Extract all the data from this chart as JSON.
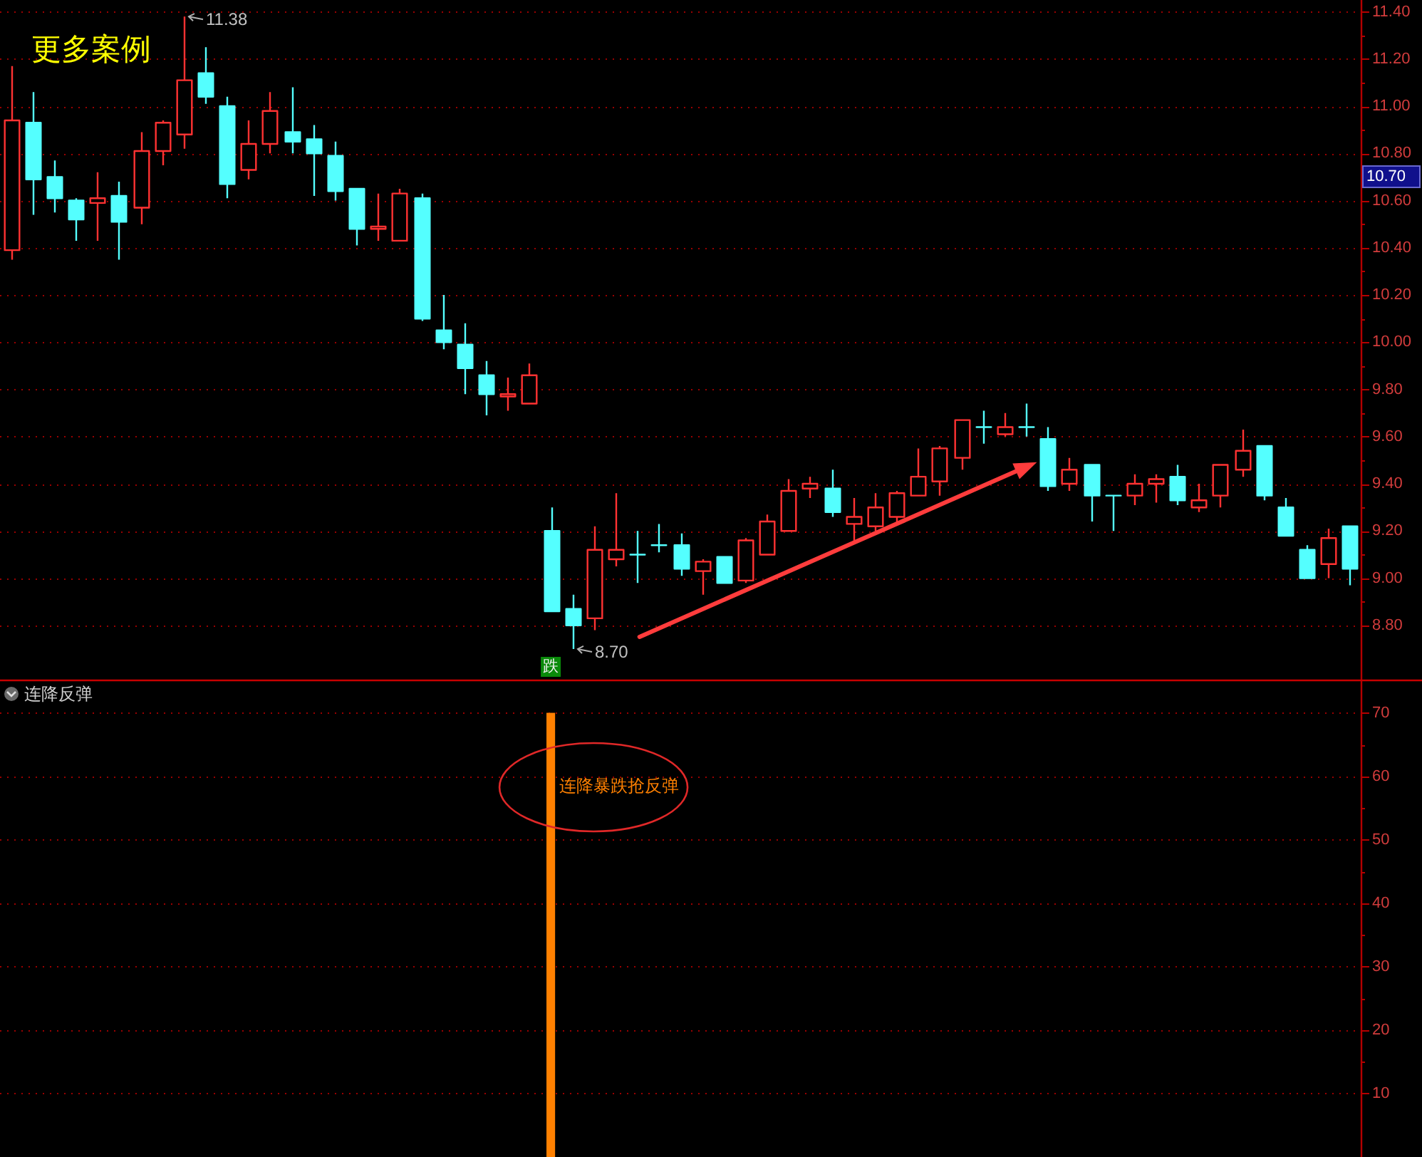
{
  "chart_data": [
    {
      "type": "candlestick",
      "categories": [
        null,
        null,
        null,
        null,
        null,
        null,
        null,
        null,
        null,
        null,
        null,
        null,
        null,
        null,
        null,
        null,
        null,
        null,
        null,
        null,
        null,
        null,
        null,
        null,
        null,
        null,
        null,
        null,
        null,
        null,
        null,
        null,
        null,
        null,
        null,
        null,
        null,
        null,
        null,
        null,
        null,
        null,
        null,
        null,
        null,
        null,
        null,
        null,
        null,
        null,
        null,
        null,
        null,
        null,
        null,
        null,
        null,
        null,
        null,
        null,
        null,
        null,
        null
      ],
      "ohlc": [
        [
          10.39,
          11.17,
          10.35,
          10.94
        ],
        [
          10.93,
          11.06,
          10.54,
          10.69
        ],
        [
          10.7,
          10.77,
          10.55,
          10.61
        ],
        [
          10.6,
          10.61,
          10.43,
          10.52
        ],
        [
          10.59,
          10.72,
          10.43,
          10.61
        ],
        [
          10.62,
          10.68,
          10.35,
          10.51
        ],
        [
          10.57,
          10.89,
          10.5,
          10.81
        ],
        [
          10.81,
          10.94,
          10.75,
          10.93
        ],
        [
          10.88,
          11.38,
          10.82,
          11.11
        ],
        [
          11.14,
          11.25,
          11.01,
          11.04
        ],
        [
          11.0,
          11.04,
          10.61,
          10.67
        ],
        [
          10.73,
          10.94,
          10.69,
          10.84
        ],
        [
          10.84,
          11.06,
          10.8,
          10.98
        ],
        [
          10.89,
          11.08,
          10.8,
          10.85
        ],
        [
          10.86,
          10.92,
          10.62,
          10.8
        ],
        [
          10.79,
          10.85,
          10.6,
          10.64
        ],
        [
          10.65,
          10.65,
          10.41,
          10.48
        ],
        [
          10.48,
          10.63,
          10.43,
          10.49
        ],
        [
          10.43,
          10.65,
          10.43,
          10.63
        ],
        [
          10.61,
          10.63,
          10.09,
          10.1
        ],
        [
          10.05,
          10.2,
          9.97,
          10.0
        ],
        [
          9.99,
          10.08,
          9.78,
          9.89
        ],
        [
          9.86,
          9.92,
          9.69,
          9.78
        ],
        [
          9.77,
          9.85,
          9.71,
          9.78
        ],
        [
          9.74,
          9.91,
          9.74,
          9.86
        ],
        [
          9.2,
          9.3,
          8.86,
          8.86
        ],
        [
          8.87,
          8.93,
          8.7,
          8.8
        ],
        [
          8.83,
          9.22,
          8.78,
          9.12
        ],
        [
          9.08,
          9.36,
          9.05,
          9.12
        ],
        [
          9.1,
          9.2,
          8.98,
          9.1
        ],
        [
          9.14,
          9.23,
          9.11,
          9.14
        ],
        [
          9.14,
          9.19,
          9.01,
          9.04
        ],
        [
          9.03,
          9.08,
          8.93,
          9.07
        ],
        [
          9.09,
          9.09,
          8.98,
          8.98
        ],
        [
          8.99,
          9.17,
          8.98,
          9.16
        ],
        [
          9.1,
          9.27,
          9.1,
          9.24
        ],
        [
          9.2,
          9.42,
          9.2,
          9.37
        ],
        [
          9.38,
          9.43,
          9.34,
          9.4
        ],
        [
          9.38,
          9.46,
          9.26,
          9.28
        ],
        [
          9.23,
          9.34,
          9.15,
          9.26
        ],
        [
          9.22,
          9.36,
          9.2,
          9.3
        ],
        [
          9.26,
          9.37,
          9.23,
          9.36
        ],
        [
          9.35,
          9.55,
          9.35,
          9.43
        ],
        [
          9.41,
          9.56,
          9.35,
          9.55
        ],
        [
          9.51,
          9.67,
          9.46,
          9.67
        ],
        [
          9.64,
          9.71,
          9.57,
          9.64
        ],
        [
          9.61,
          9.7,
          9.6,
          9.64
        ],
        [
          9.64,
          9.74,
          9.6,
          9.64
        ],
        [
          9.59,
          9.64,
          9.37,
          9.39
        ],
        [
          9.4,
          9.51,
          9.37,
          9.46
        ],
        [
          9.48,
          9.48,
          9.24,
          9.35
        ],
        [
          9.35,
          9.35,
          9.2,
          9.35
        ],
        [
          9.35,
          9.44,
          9.31,
          9.4
        ],
        [
          9.4,
          9.44,
          9.32,
          9.42
        ],
        [
          9.43,
          9.48,
          9.31,
          9.33
        ],
        [
          9.3,
          9.4,
          9.28,
          9.33
        ],
        [
          9.35,
          9.48,
          9.3,
          9.48
        ],
        [
          9.46,
          9.63,
          9.43,
          9.54
        ],
        [
          9.56,
          9.56,
          9.33,
          9.35
        ],
        [
          9.3,
          9.34,
          9.18,
          9.18
        ],
        [
          9.12,
          9.14,
          9.0,
          9.0
        ],
        [
          9.06,
          9.21,
          9.0,
          9.17
        ],
        [
          9.22,
          9.22,
          8.97,
          9.04
        ]
      ],
      "colors": [
        "#ff3232",
        "#54ffff",
        "#54ffff",
        "#54ffff",
        "#ff3232",
        "#54ffff",
        "#ff3232",
        "#ff3232",
        "#ff3232",
        "#54ffff",
        "#54ffff",
        "#ff3232",
        "#ff3232",
        "#54ffff",
        "#54ffff",
        "#54ffff",
        "#54ffff",
        "#ff3232",
        "#ff3232",
        "#54ffff",
        "#54ffff",
        "#54ffff",
        "#54ffff",
        "#ff3232",
        "#ff3232",
        "#54ffff",
        "#54ffff",
        "#ff3232",
        "#ff3232",
        "#54ffff",
        "#54ffff",
        "#54ffff",
        "#ff3232",
        "#54ffff",
        "#ff3232",
        "#ff3232",
        "#ff3232",
        "#ff3232",
        "#54ffff",
        "#ff3232",
        "#ff3232",
        "#ff3232",
        "#ff3232",
        "#ff3232",
        "#ff3232",
        "#54ffff",
        "#ff3232",
        "#54ffff",
        "#54ffff",
        "#ff3232",
        "#54ffff",
        "#54ffff",
        "#ff3232",
        "#ff3232",
        "#54ffff",
        "#ff3232",
        "#ff3232",
        "#ff3232",
        "#54ffff",
        "#54ffff",
        "#54ffff",
        "#ff3232",
        "#54ffff"
      ],
      "ylim": [
        8.57,
        11.45
      ],
      "yticks": [
        {
          "value": 11.4,
          "label": "11.40"
        },
        {
          "value": 11.3,
          "label": null
        },
        {
          "value": 11.2,
          "label": "11.20"
        },
        {
          "value": 11.1,
          "label": null
        },
        {
          "value": 11.0,
          "label": "11.00"
        },
        {
          "value": 10.9,
          "label": null
        },
        {
          "value": 10.8,
          "label": "10.80"
        },
        {
          "value": 10.7,
          "label": null
        },
        {
          "value": 10.6,
          "label": "10.60"
        },
        {
          "value": 10.5,
          "label": null
        },
        {
          "value": 10.4,
          "label": "10.40"
        },
        {
          "value": 10.3,
          "label": null
        },
        {
          "value": 10.2,
          "label": "10.20"
        },
        {
          "value": 10.1,
          "label": null
        },
        {
          "value": 10.0,
          "label": "10.00"
        },
        {
          "value": 9.9,
          "label": null
        },
        {
          "value": 9.8,
          "label": "9.80"
        },
        {
          "value": 9.7,
          "label": null
        },
        {
          "value": 9.6,
          "label": "9.60"
        },
        {
          "value": 9.5,
          "label": null
        },
        {
          "value": 9.4,
          "label": "9.40"
        },
        {
          "value": 9.3,
          "label": null
        },
        {
          "value": 9.2,
          "label": "9.20"
        },
        {
          "value": 9.1,
          "label": null
        },
        {
          "value": 9.0,
          "label": "9.00"
        },
        {
          "value": 8.9,
          "label": null
        },
        {
          "value": 8.8,
          "label": "8.80"
        }
      ],
      "grid": "y",
      "tick_labels": "y",
      "annotations": [
        "更多案例",
        "11.38",
        "8.70",
        "跌",
        "10.70"
      ]
    },
    {
      "type": "bar",
      "title": "连降反弹",
      "categories": [
        null,
        null,
        null,
        null,
        null,
        null,
        null,
        null,
        null,
        null,
        null,
        null,
        null,
        null,
        null,
        null,
        null,
        null,
        null,
        null,
        null,
        null,
        null,
        null,
        null,
        null,
        null,
        null,
        null,
        null,
        null,
        null,
        null,
        null,
        null,
        null,
        null,
        null,
        null,
        null,
        null,
        null,
        null,
        null,
        null,
        null,
        null,
        null,
        null,
        null,
        null,
        null,
        null,
        null,
        null,
        null,
        null,
        null,
        null,
        null,
        null,
        null,
        null
      ],
      "values": [
        null,
        null,
        null,
        null,
        null,
        null,
        null,
        null,
        null,
        null,
        null,
        null,
        null,
        null,
        null,
        null,
        null,
        null,
        null,
        null,
        null,
        null,
        null,
        null,
        null,
        70,
        null,
        null,
        null,
        null,
        null,
        null,
        null,
        null,
        null,
        null,
        null,
        null,
        null,
        null,
        null,
        null,
        null,
        null,
        null,
        null,
        null,
        null,
        null,
        null,
        null,
        null,
        null,
        null,
        null,
        null,
        null,
        null,
        null,
        null,
        null,
        null,
        null
      ],
      "color": "#ff8000",
      "ylim": [
        0,
        75
      ],
      "yticks": [
        70,
        {
          "value": 65,
          "label": null
        },
        60,
        {
          "value": 55,
          "label": null
        },
        50,
        {
          "value": 45,
          "label": null
        },
        40,
        {
          "value": 35,
          "label": null
        },
        30,
        {
          "value": 25,
          "label": null
        },
        20,
        {
          "value": 15,
          "label": null
        },
        10
      ],
      "grid": "y",
      "tick_labels": "y",
      "annotations": [
        "连降暴跌抢反弹"
      ]
    }
  ]
}
